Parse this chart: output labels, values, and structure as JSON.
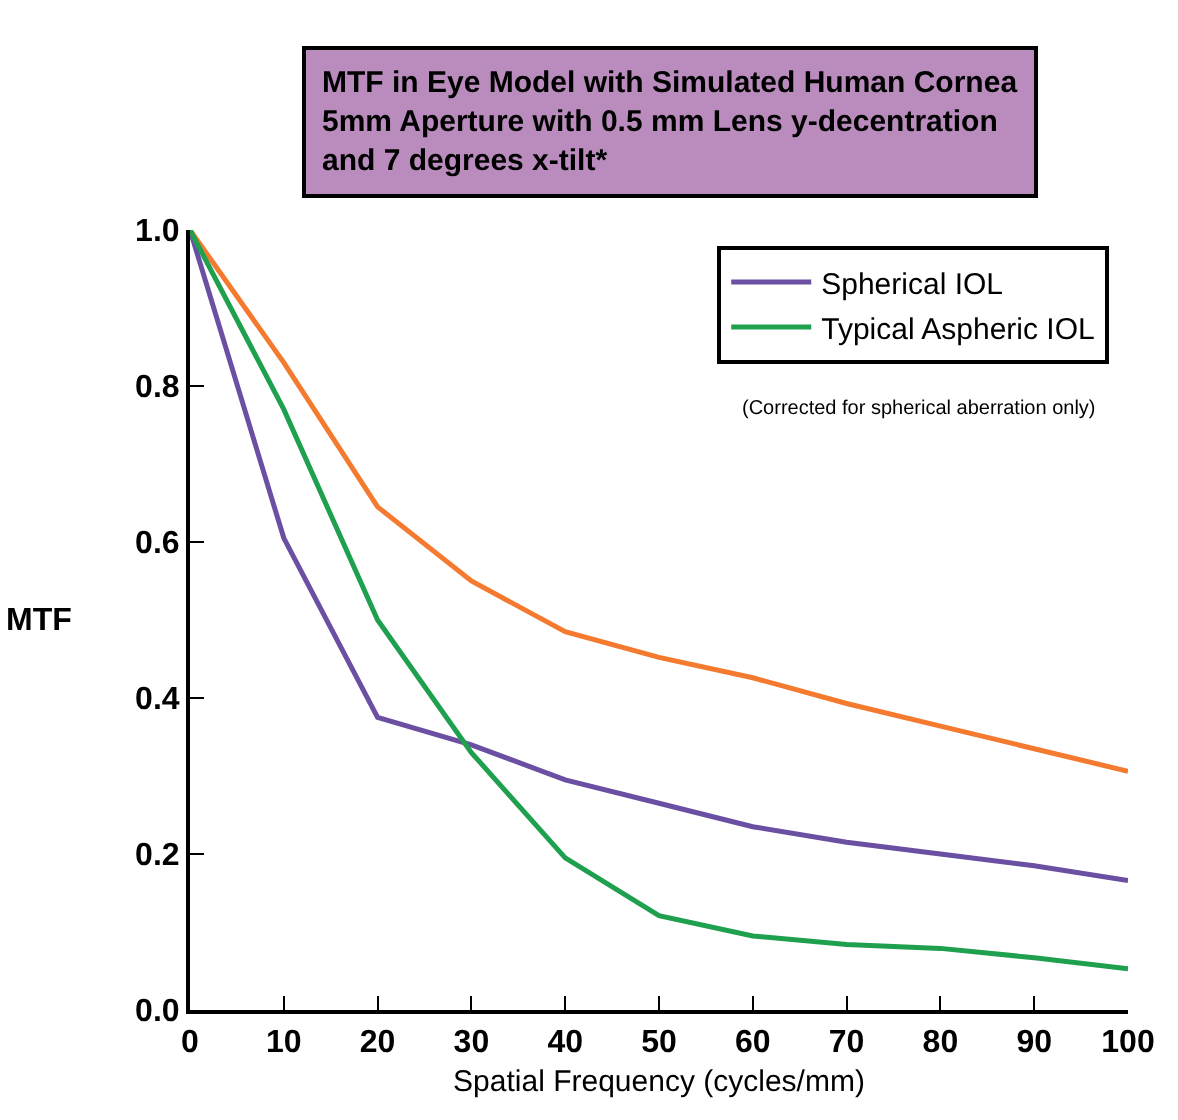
{
  "chart_data": {
    "type": "line",
    "title": "MTF in Eye Model with Simulated Human Cornea\n5mm Aperture with 0.5 mm Lens y-decentration\nand 7 degrees x-tilt*",
    "xlabel": "Spatial Frequency (cycles/mm)",
    "ylabel": "MTF",
    "x": [
      0,
      10,
      20,
      30,
      40,
      50,
      60,
      70,
      80,
      90,
      100
    ],
    "series": [
      {
        "color": "#f47a30",
        "values": [
          1.0,
          0.83,
          0.645,
          0.55,
          0.485,
          0.452,
          0.426,
          0.393,
          0.364,
          0.335,
          0.306
        ]
      },
      {
        "name": "Spherical IOL",
        "color": "#6a4fa3",
        "values": [
          1.0,
          0.605,
          0.375,
          0.34,
          0.295,
          0.265,
          0.235,
          0.215,
          0.2,
          0.185,
          0.166
        ]
      },
      {
        "name": "Typical Aspheric IOL",
        "color": "#1fa04f",
        "values": [
          1.0,
          0.77,
          0.5,
          0.33,
          0.195,
          0.121,
          0.095,
          0.084,
          0.079,
          0.067,
          0.053
        ]
      }
    ],
    "annotations": [
      "(Corrected for spherical aberration only)"
    ],
    "xlim": [
      0,
      100
    ],
    "xticks": [
      0,
      10,
      20,
      30,
      40,
      50,
      60,
      70,
      80,
      90,
      100
    ],
    "ylim": [
      0,
      1
    ],
    "yticks": [
      {
        "value": 0,
        "label": "0.0"
      },
      0.2,
      0.4,
      0.6,
      0.8,
      {
        "value": 1,
        "label": "1.0"
      }
    ],
    "legend": "top right",
    "marker": "none",
    "line_style": "solid"
  }
}
